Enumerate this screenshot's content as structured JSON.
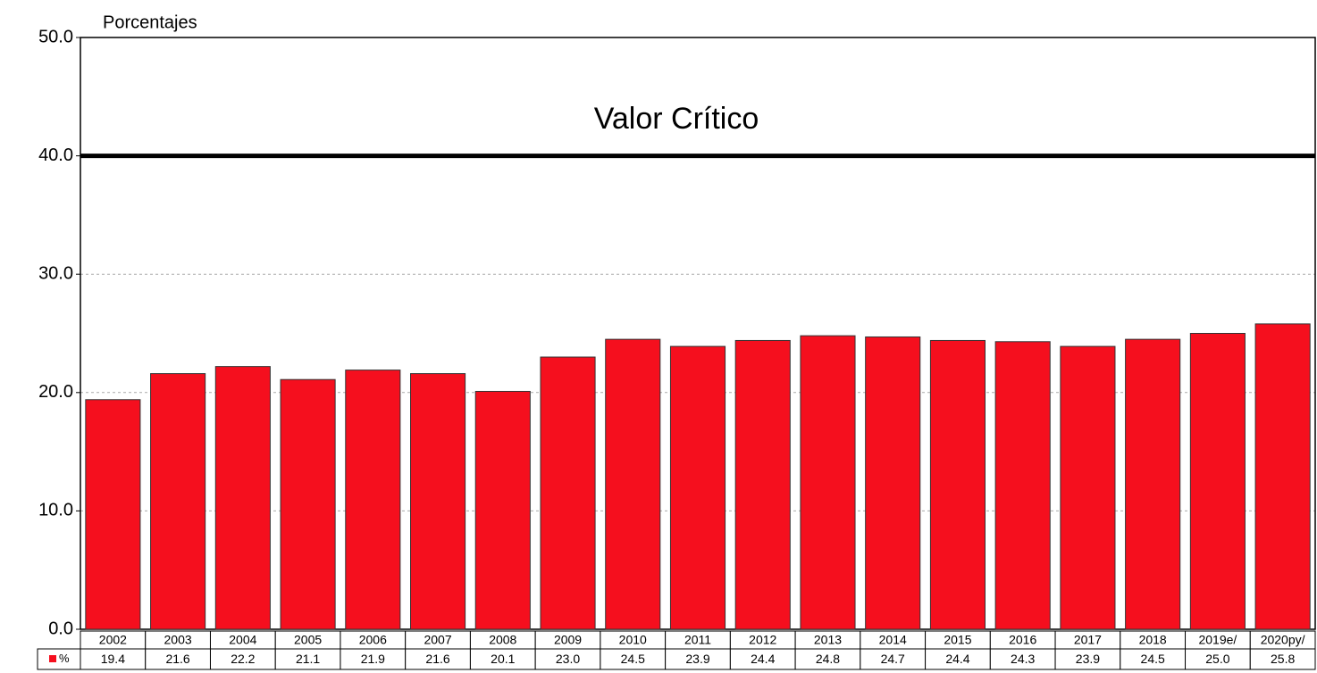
{
  "chart_data": {
    "type": "bar",
    "y_axis_label": "Porcentajes",
    "annotation": "Valor Crítico",
    "critical_value": 40,
    "categories": [
      "2002",
      "2003",
      "2004",
      "2005",
      "2006",
      "2007",
      "2008",
      "2009",
      "2010",
      "2011",
      "2012",
      "2013",
      "2014",
      "2015",
      "2016",
      "2017",
      "2018",
      "2019e/",
      "2020py/"
    ],
    "series": [
      {
        "name": "%",
        "color": "#f50f1e",
        "values": [
          19.4,
          21.6,
          22.2,
          21.1,
          21.9,
          21.6,
          20.1,
          23.0,
          24.5,
          23.9,
          24.4,
          24.8,
          24.7,
          24.4,
          24.3,
          23.9,
          24.5,
          25.0,
          25.8
        ],
        "value_labels": [
          "19.4",
          "21.6",
          "22.2",
          "21.1",
          "21.9",
          "21.6",
          "20.1",
          "23.0",
          "24.5",
          "23.9",
          "24.4",
          "24.8",
          "24.7",
          "24.4",
          "24.3",
          "23.9",
          "24.5",
          "25.0",
          "25.8"
        ]
      }
    ],
    "ylim": [
      0,
      50
    ],
    "yticks": [
      {
        "value": 0,
        "label": "0.0"
      },
      {
        "value": 10,
        "label": "10.0"
      },
      {
        "value": 20,
        "label": "20.0"
      },
      {
        "value": 30,
        "label": "30.0"
      },
      {
        "value": 40,
        "label": "40.0"
      },
      {
        "value": 50,
        "label": "50.0"
      }
    ],
    "grid": true
  }
}
